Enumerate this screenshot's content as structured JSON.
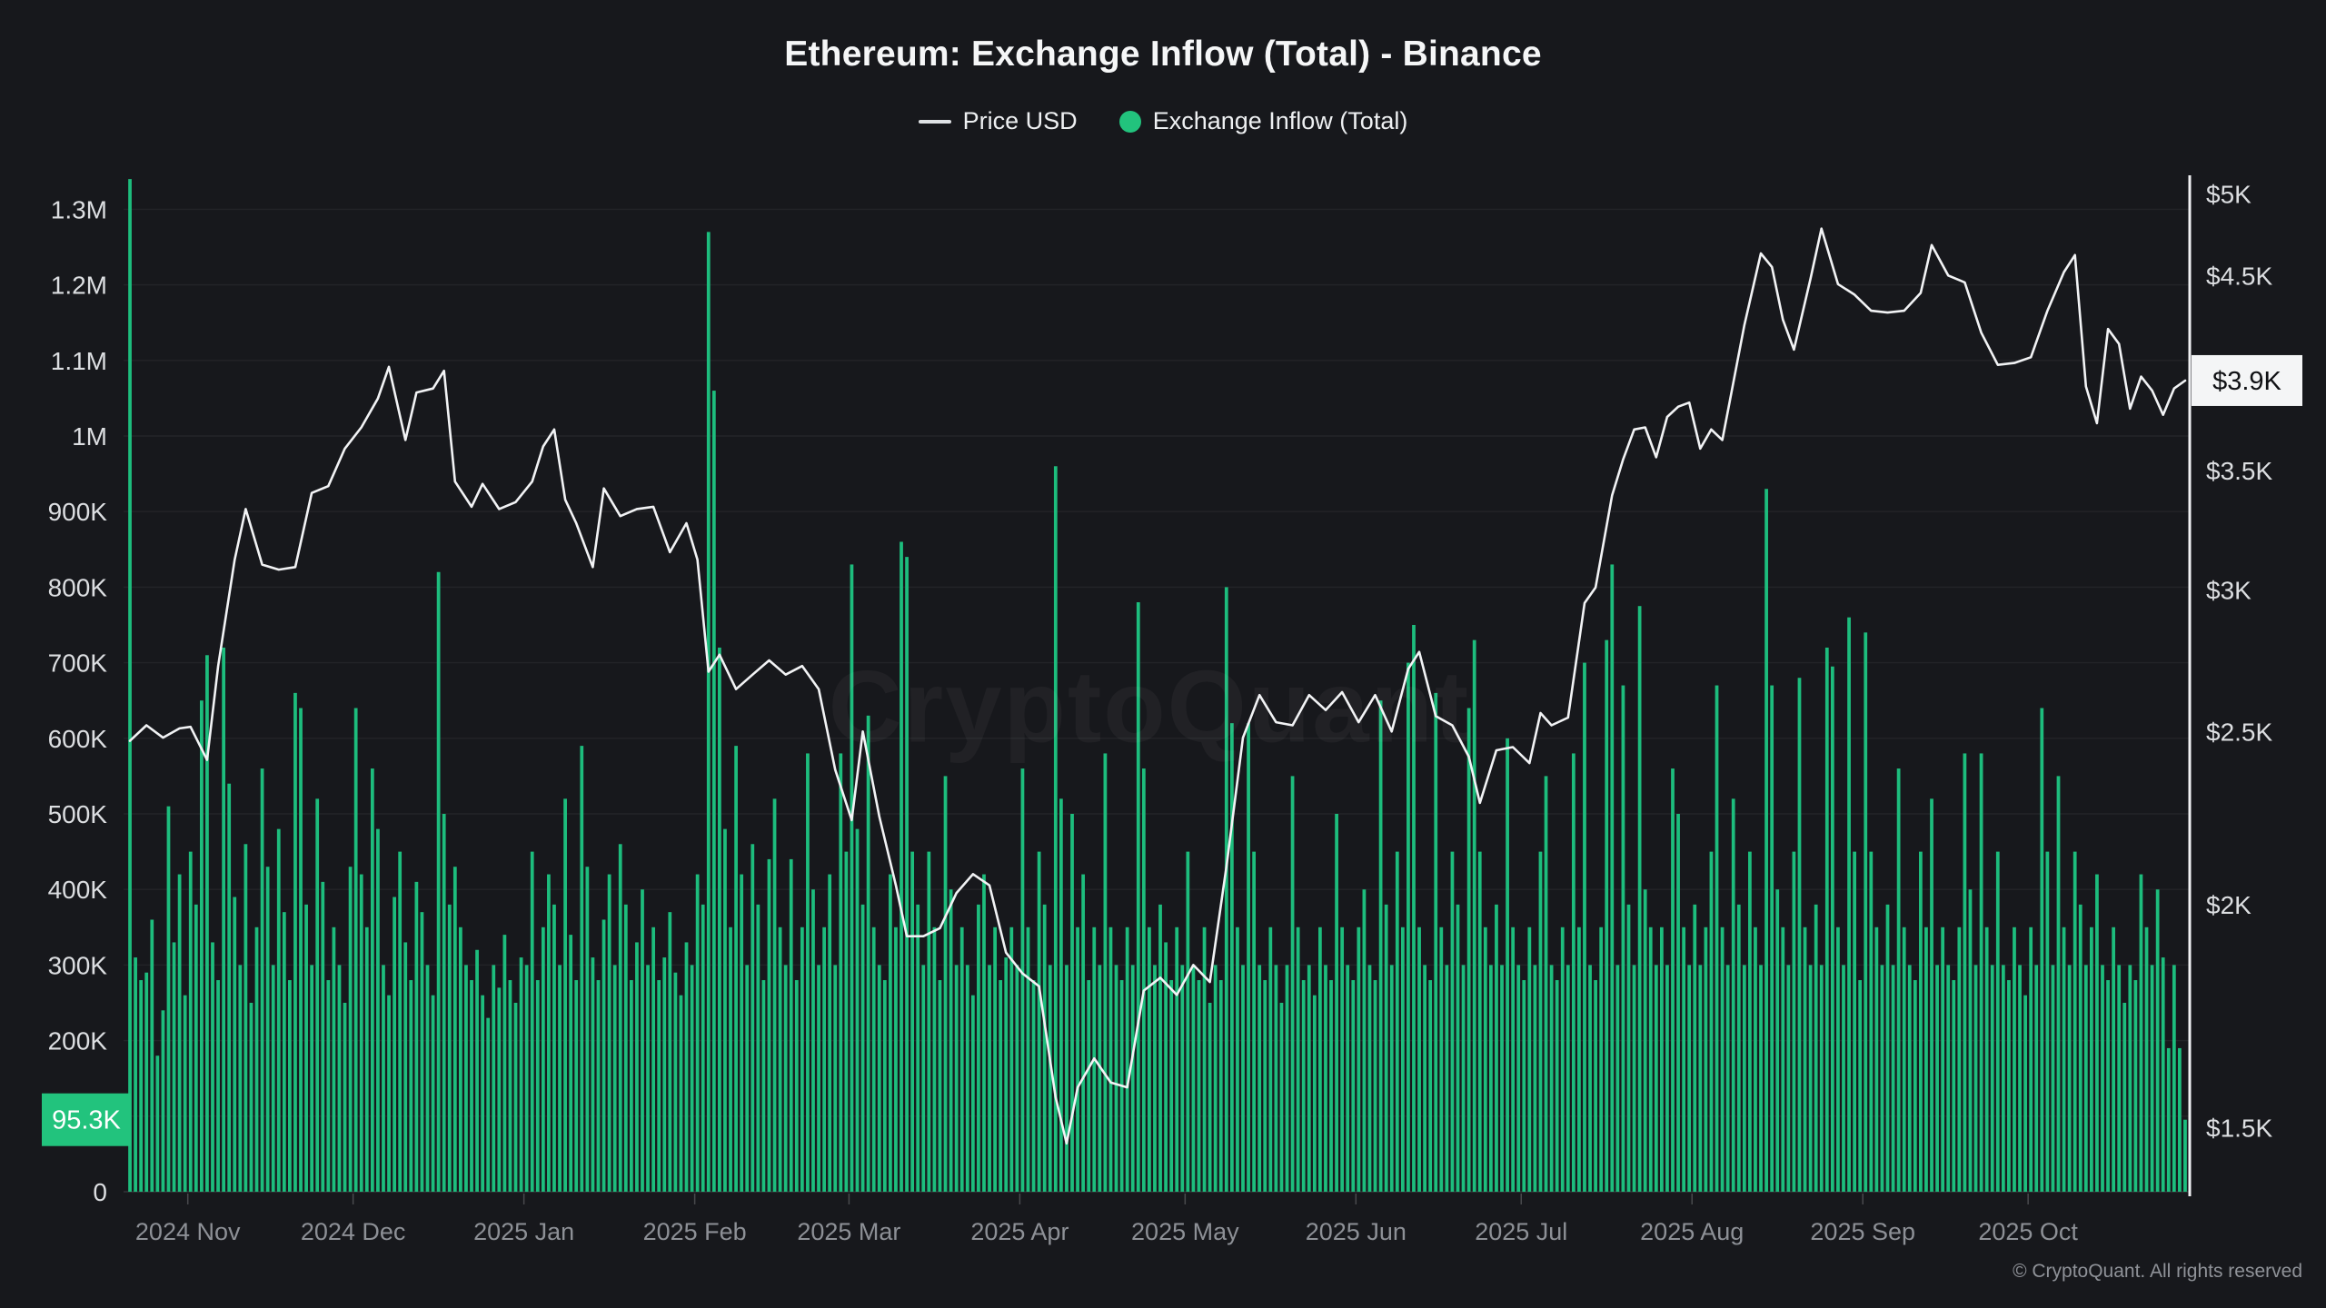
{
  "header": {
    "title": "Ethereum: Exchange Inflow (Total) - Binance"
  },
  "legend": {
    "items": [
      {
        "label": "Price USD",
        "marker": "line-dash",
        "color": "#f2f3f5"
      },
      {
        "label": "Exchange Inflow (Total)",
        "marker": "dot",
        "color": "#22c37d"
      }
    ]
  },
  "watermark": {
    "text": "CryptoQuant"
  },
  "footer": {
    "copyright": "© CryptoQuant. All rights reserved"
  },
  "badges": {
    "inflow_last": {
      "label": "95.3K",
      "value_k": 95.3,
      "bg": "#22c37d",
      "text_color": "#ffffff"
    },
    "price_last": {
      "label": "$3.9K",
      "value": 3930,
      "bg": "#f4f5f6",
      "text_color": "#101114"
    }
  },
  "colors": {
    "background": "#17181c",
    "bar": "#1dbd7d",
    "price_line": "#f2f3f5",
    "grid": "rgba(255,255,255,0.055)",
    "baseline": "rgba(255,255,255,0.12)",
    "axis_line": "#f0f1f3",
    "y_label": "#dcdee1",
    "x_label": "#8d9096"
  },
  "chart_data": {
    "type": "bar+line",
    "title": "Ethereum: Exchange Inflow (Total) - Binance",
    "date_range": {
      "start": "2024-10-21",
      "end": "2025-10-29",
      "days": 374
    },
    "grid": "horizontal-only",
    "legend_position": "top-center",
    "x_ticks": {
      "labels": [
        "2024 Nov",
        "2024 Dec",
        "2025 Jan",
        "2025 Feb",
        "2025 Mar",
        "2025 Apr",
        "2025 May",
        "2025 Jun",
        "2025 Jul",
        "2025 Aug",
        "2025 Sep",
        "2025 Oct"
      ],
      "day_offsets": [
        11,
        41,
        72,
        103,
        131,
        162,
        192,
        223,
        253,
        284,
        315,
        345
      ]
    },
    "left_axis": {
      "name": "Exchange Inflow (Total)",
      "unit": "ETH",
      "scale": "linear",
      "ylim_k": [
        0,
        1350
      ],
      "tick_values_k": [
        0,
        200,
        300,
        400,
        500,
        600,
        700,
        800,
        900,
        1000,
        1100,
        1200,
        1300
      ],
      "tick_labels": [
        "0",
        "200K",
        "300K",
        "400K",
        "500K",
        "600K",
        "700K",
        "800K",
        "900K",
        "1M",
        "1.1M",
        "1.2M",
        "1.3M"
      ],
      "grid_values_k": [
        100,
        200,
        300,
        400,
        500,
        600,
        700,
        800,
        900,
        1000,
        1100,
        1200,
        1300
      ]
    },
    "right_axis": {
      "name": "Price USD",
      "unit": "USD",
      "scale": "log",
      "ylim": [
        1430,
        5250
      ],
      "tick_values": [
        1500,
        2000,
        2500,
        3000,
        3500,
        4500,
        5000
      ],
      "tick_labels": [
        "$1.5K",
        "$2K",
        "$2.5K",
        "$3K",
        "$3.5K",
        "$4.5K",
        "$5K"
      ]
    },
    "series": [
      {
        "name": "Exchange Inflow (Total)",
        "type": "bar",
        "unit": "thousand ETH",
        "color": "#1dbd7d",
        "values_k": [
          1340,
          310,
          280,
          290,
          360,
          180,
          240,
          510,
          330,
          420,
          260,
          450,
          380,
          650,
          710,
          330,
          280,
          720,
          540,
          390,
          300,
          460,
          250,
          350,
          560,
          430,
          300,
          480,
          370,
          280,
          660,
          640,
          380,
          300,
          520,
          410,
          280,
          350,
          300,
          250,
          430,
          640,
          420,
          350,
          560,
          480,
          300,
          260,
          390,
          450,
          330,
          280,
          410,
          370,
          300,
          260,
          820,
          500,
          380,
          430,
          350,
          300,
          280,
          320,
          260,
          230,
          300,
          270,
          340,
          280,
          250,
          310,
          300,
          450,
          280,
          350,
          420,
          380,
          300,
          520,
          340,
          280,
          590,
          430,
          310,
          280,
          360,
          420,
          300,
          460,
          380,
          280,
          330,
          400,
          300,
          350,
          280,
          310,
          370,
          290,
          260,
          330,
          300,
          420,
          380,
          1270,
          1060,
          720,
          480,
          350,
          590,
          420,
          300,
          460,
          380,
          280,
          440,
          520,
          350,
          300,
          440,
          280,
          350,
          580,
          400,
          300,
          350,
          420,
          300,
          580,
          450,
          830,
          480,
          380,
          630,
          350,
          300,
          280,
          420,
          350,
          860,
          840,
          450,
          380,
          300,
          450,
          350,
          280,
          550,
          400,
          300,
          350,
          300,
          260,
          380,
          420,
          300,
          350,
          280,
          310,
          350,
          300,
          560,
          350,
          280,
          450,
          380,
          300,
          960,
          520,
          300,
          500,
          350,
          420,
          280,
          350,
          300,
          580,
          350,
          300,
          280,
          350,
          300,
          780,
          560,
          350,
          300,
          380,
          330,
          280,
          350,
          300,
          450,
          300,
          280,
          350,
          250,
          300,
          280,
          800,
          620,
          350,
          300,
          620,
          450,
          300,
          280,
          350,
          300,
          250,
          300,
          550,
          350,
          280,
          300,
          260,
          350,
          300,
          280,
          500,
          350,
          300,
          280,
          350,
          400,
          300,
          280,
          650,
          380,
          300,
          450,
          350,
          700,
          750,
          350,
          300,
          280,
          660,
          350,
          300,
          450,
          380,
          300,
          640,
          730,
          450,
          350,
          300,
          380,
          300,
          600,
          350,
          300,
          280,
          350,
          300,
          450,
          550,
          300,
          280,
          350,
          300,
          580,
          350,
          700,
          300,
          280,
          350,
          730,
          830,
          300,
          670,
          380,
          300,
          775,
          400,
          350,
          300,
          350,
          300,
          560,
          500,
          350,
          300,
          380,
          300,
          350,
          450,
          670,
          350,
          300,
          520,
          380,
          300,
          450,
          350,
          300,
          930,
          670,
          400,
          350,
          300,
          450,
          680,
          350,
          300,
          380,
          300,
          720,
          695,
          350,
          300,
          760,
          450,
          280,
          740,
          450,
          350,
          300,
          380,
          300,
          560,
          350,
          300,
          280,
          450,
          350,
          520,
          300,
          350,
          300,
          280,
          350,
          580,
          400,
          300,
          580,
          350,
          300,
          450,
          300,
          280,
          350,
          300,
          260,
          350,
          300,
          640,
          450,
          300,
          550,
          350,
          300,
          450,
          380,
          300,
          350,
          420,
          300,
          280,
          350,
          300,
          250,
          300,
          280,
          420,
          350,
          300,
          400,
          310,
          190,
          300,
          190,
          95.3
        ]
      },
      {
        "name": "Price USD",
        "type": "line",
        "unit": "USD",
        "color": "#f2f3f5",
        "points_day_value": [
          [
            0,
            2470
          ],
          [
            3,
            2520
          ],
          [
            6,
            2480
          ],
          [
            9,
            2510
          ],
          [
            11,
            2515
          ],
          [
            14,
            2410
          ],
          [
            16,
            2720
          ],
          [
            19,
            3120
          ],
          [
            21,
            3330
          ],
          [
            24,
            3100
          ],
          [
            27,
            3080
          ],
          [
            30,
            3090
          ],
          [
            33,
            3400
          ],
          [
            36,
            3430
          ],
          [
            39,
            3600
          ],
          [
            42,
            3700
          ],
          [
            45,
            3840
          ],
          [
            47,
            4000
          ],
          [
            50,
            3640
          ],
          [
            52,
            3870
          ],
          [
            55,
            3890
          ],
          [
            57,
            3980
          ],
          [
            59,
            3450
          ],
          [
            62,
            3340
          ],
          [
            64,
            3440
          ],
          [
            67,
            3330
          ],
          [
            70,
            3360
          ],
          [
            73,
            3450
          ],
          [
            75,
            3610
          ],
          [
            77,
            3690
          ],
          [
            79,
            3370
          ],
          [
            81,
            3270
          ],
          [
            84,
            3090
          ],
          [
            86,
            3420
          ],
          [
            89,
            3300
          ],
          [
            92,
            3330
          ],
          [
            95,
            3340
          ],
          [
            98,
            3150
          ],
          [
            101,
            3270
          ],
          [
            103,
            3120
          ],
          [
            105,
            2700
          ],
          [
            107,
            2760
          ],
          [
            110,
            2640
          ],
          [
            113,
            2690
          ],
          [
            116,
            2740
          ],
          [
            119,
            2690
          ],
          [
            122,
            2720
          ],
          [
            125,
            2640
          ],
          [
            128,
            2380
          ],
          [
            131,
            2230
          ],
          [
            133,
            2500
          ],
          [
            136,
            2240
          ],
          [
            139,
            2050
          ],
          [
            141,
            1920
          ],
          [
            144,
            1920
          ],
          [
            147,
            1940
          ],
          [
            150,
            2030
          ],
          [
            153,
            2080
          ],
          [
            156,
            2050
          ],
          [
            159,
            1880
          ],
          [
            162,
            1830
          ],
          [
            165,
            1800
          ],
          [
            168,
            1560
          ],
          [
            170,
            1470
          ],
          [
            172,
            1580
          ],
          [
            175,
            1640
          ],
          [
            178,
            1590
          ],
          [
            181,
            1580
          ],
          [
            184,
            1790
          ],
          [
            187,
            1820
          ],
          [
            190,
            1780
          ],
          [
            193,
            1850
          ],
          [
            196,
            1810
          ],
          [
            199,
            2100
          ],
          [
            202,
            2480
          ],
          [
            205,
            2620
          ],
          [
            208,
            2530
          ],
          [
            211,
            2520
          ],
          [
            214,
            2620
          ],
          [
            217,
            2570
          ],
          [
            220,
            2630
          ],
          [
            223,
            2530
          ],
          [
            226,
            2620
          ],
          [
            229,
            2500
          ],
          [
            232,
            2710
          ],
          [
            234,
            2770
          ],
          [
            237,
            2550
          ],
          [
            240,
            2520
          ],
          [
            243,
            2420
          ],
          [
            245,
            2280
          ],
          [
            248,
            2440
          ],
          [
            251,
            2450
          ],
          [
            254,
            2400
          ],
          [
            256,
            2560
          ],
          [
            258,
            2520
          ],
          [
            261,
            2545
          ],
          [
            264,
            2950
          ],
          [
            266,
            3010
          ],
          [
            269,
            3390
          ],
          [
            271,
            3550
          ],
          [
            273,
            3690
          ],
          [
            275,
            3700
          ],
          [
            277,
            3560
          ],
          [
            279,
            3750
          ],
          [
            281,
            3800
          ],
          [
            283,
            3820
          ],
          [
            285,
            3600
          ],
          [
            287,
            3690
          ],
          [
            289,
            3640
          ],
          [
            293,
            4220
          ],
          [
            296,
            4630
          ],
          [
            298,
            4550
          ],
          [
            300,
            4250
          ],
          [
            302,
            4090
          ],
          [
            305,
            4480
          ],
          [
            307,
            4780
          ],
          [
            310,
            4450
          ],
          [
            313,
            4390
          ],
          [
            316,
            4300
          ],
          [
            319,
            4290
          ],
          [
            322,
            4300
          ],
          [
            325,
            4400
          ],
          [
            327,
            4680
          ],
          [
            330,
            4500
          ],
          [
            333,
            4460
          ],
          [
            336,
            4180
          ],
          [
            339,
            4010
          ],
          [
            342,
            4020
          ],
          [
            345,
            4050
          ],
          [
            348,
            4300
          ],
          [
            351,
            4520
          ],
          [
            353,
            4620
          ],
          [
            355,
            3900
          ],
          [
            357,
            3720
          ],
          [
            359,
            4200
          ],
          [
            361,
            4120
          ],
          [
            363,
            3790
          ],
          [
            365,
            3950
          ],
          [
            367,
            3880
          ],
          [
            369,
            3760
          ],
          [
            371,
            3890
          ],
          [
            373,
            3930
          ]
        ]
      }
    ],
    "last_values": {
      "inflow_label": "95.3K",
      "inflow_k": 95.3,
      "price_label": "$3.9K",
      "price": 3930
    }
  }
}
